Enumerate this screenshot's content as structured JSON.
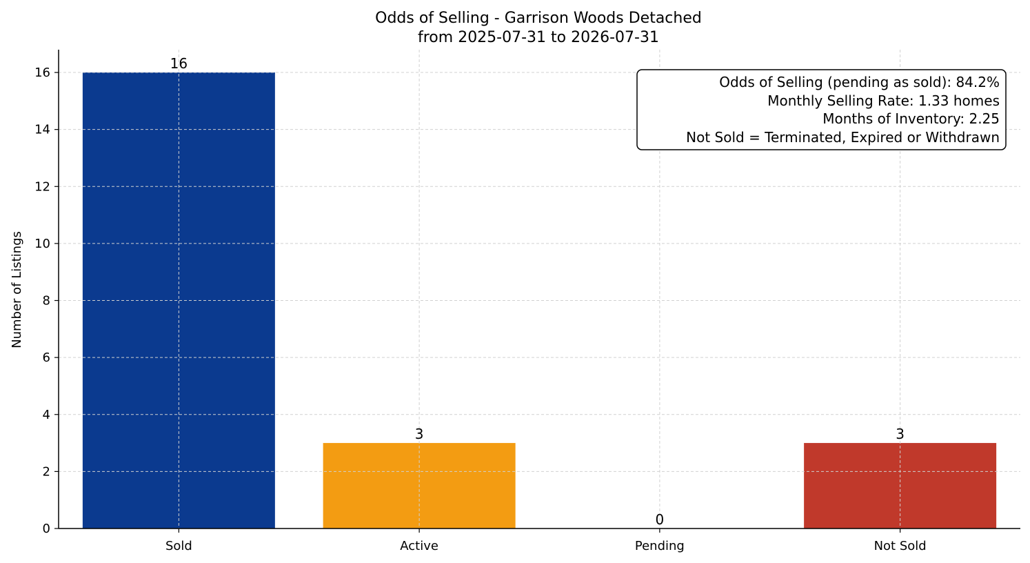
{
  "chart_data": {
    "type": "bar",
    "title": "Odds of Selling - Garrison Woods Detached",
    "subtitle": "from 2025-07-31 to 2026-07-31",
    "xlabel": "",
    "ylabel": "Number of Listings",
    "categories": [
      "Sold",
      "Active",
      "Pending",
      "Not Sold"
    ],
    "values": [
      16,
      3,
      0,
      3
    ],
    "colors": [
      "#0b3a8f",
      "#f39c12",
      "#2e8b57",
      "#c0392b"
    ],
    "ylim": [
      0,
      16.8
    ],
    "yticks": [
      0,
      2,
      4,
      6,
      8,
      10,
      12,
      14,
      16
    ],
    "grid": true,
    "info_box": [
      "Odds of Selling (pending as sold): 84.2%",
      "Monthly Selling Rate: 1.33 homes",
      "Months of Inventory: 2.25",
      "Not Sold = Terminated, Expired or Withdrawn"
    ]
  }
}
